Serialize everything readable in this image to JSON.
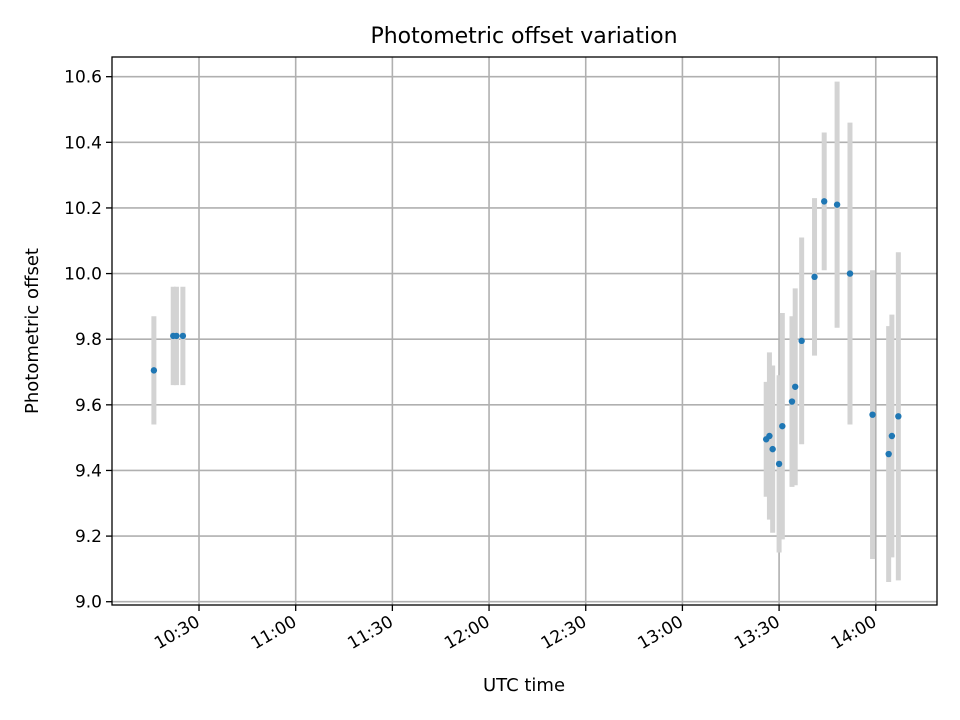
{
  "chart_data": {
    "type": "scatter",
    "title": "Photometric offset variation",
    "xlabel": "UTC time",
    "ylabel": "Photometric offset",
    "grid": true,
    "xlim": [
      "10:03",
      "14:19"
    ],
    "ylim": [
      8.99,
      10.66
    ],
    "x_ticks": [
      "10:30",
      "11:00",
      "11:30",
      "12:00",
      "12:30",
      "13:00",
      "13:30",
      "14:00"
    ],
    "y_ticks": [
      "9.0",
      "9.2",
      "9.4",
      "9.6",
      "9.8",
      "10.0",
      "10.2",
      "10.4",
      "10.6"
    ],
    "colors": {
      "points": "#1f77b4",
      "error_bars": "#d3d3d3"
    },
    "points": [
      {
        "x": "10:16",
        "y": 9.705,
        "err": 0.165
      },
      {
        "x": "10:22",
        "y": 9.81,
        "err": 0.15
      },
      {
        "x": "10:23",
        "y": 9.81,
        "err": 0.15
      },
      {
        "x": "10:25",
        "y": 9.81,
        "err": 0.15
      },
      {
        "x": "13:26",
        "y": 9.495,
        "err": 0.175
      },
      {
        "x": "13:27",
        "y": 9.505,
        "err": 0.255
      },
      {
        "x": "13:28",
        "y": 9.465,
        "err": 0.255
      },
      {
        "x": "13:30",
        "y": 9.42,
        "err": 0.27
      },
      {
        "x": "13:31",
        "y": 9.535,
        "err": 0.345
      },
      {
        "x": "13:34",
        "y": 9.61,
        "err": 0.26
      },
      {
        "x": "13:35",
        "y": 9.655,
        "err": 0.3
      },
      {
        "x": "13:37",
        "y": 9.795,
        "err": 0.315
      },
      {
        "x": "13:41",
        "y": 9.99,
        "err": 0.24
      },
      {
        "x": "13:44",
        "y": 10.22,
        "err": 0.21
      },
      {
        "x": "13:48",
        "y": 10.21,
        "err": 0.375
      },
      {
        "x": "13:52",
        "y": 10.0,
        "err": 0.46
      },
      {
        "x": "13:59",
        "y": 9.57,
        "err": 0.44
      },
      {
        "x": "14:04",
        "y": 9.45,
        "err": 0.39
      },
      {
        "x": "14:05",
        "y": 9.505,
        "err": 0.37
      },
      {
        "x": "14:07",
        "y": 9.565,
        "err": 0.5
      }
    ]
  }
}
